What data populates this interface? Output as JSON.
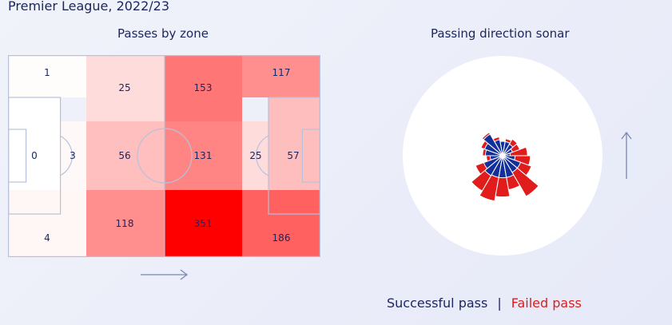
{
  "subtitle": "Premier League, 2022/23",
  "zones_title": "Passes by zone",
  "sonar_title": "Passing direction sonar",
  "legend": {
    "success": "Successful pass",
    "separator": "|",
    "failed": "Failed pass"
  },
  "colors": {
    "text": "#1c2760",
    "success": "#13309a",
    "failed": "#e01c1c",
    "heat_max": "#ff0000",
    "pitch_line": "#b8c1d8"
  },
  "chart_data": [
    {
      "type": "heatmap",
      "title": "Passes by zone",
      "attack_direction": "right",
      "max_value": 351,
      "zones": [
        {
          "zone": "defensive-left",
          "value": 1
        },
        {
          "zone": "defensive-box",
          "value": 0
        },
        {
          "zone": "defensive-box-edge",
          "value": 3
        },
        {
          "zone": "defensive-right",
          "value": 4
        },
        {
          "zone": "own-half-left",
          "value": 25
        },
        {
          "zone": "own-half-centre",
          "value": 56
        },
        {
          "zone": "own-half-right",
          "value": 118
        },
        {
          "zone": "opp-half-left",
          "value": 153
        },
        {
          "zone": "opp-half-centre",
          "value": 131
        },
        {
          "zone": "opp-half-right",
          "value": 351
        },
        {
          "zone": "final-third-left",
          "value": 117
        },
        {
          "zone": "final-third-box-edge",
          "value": 25
        },
        {
          "zone": "final-third-box",
          "value": 57
        },
        {
          "zone": "final-third-right",
          "value": 186
        }
      ]
    },
    {
      "type": "polar-bar",
      "title": "Passing direction sonar",
      "direction_arrow": "up",
      "angles_deg": [
        10,
        30,
        50,
        70,
        90,
        110,
        130,
        150,
        170,
        190,
        210,
        230,
        250,
        270,
        290,
        310,
        330,
        350
      ],
      "success_lengths": [
        0.16,
        0.22,
        0.28,
        0.3,
        0.3,
        0.34,
        0.52,
        0.4,
        0.36,
        0.26,
        0.42,
        0.48,
        0.46,
        0.46,
        0.46,
        0.4,
        0.4,
        0.26
      ],
      "total_lengths": [
        0.52,
        0.38,
        0.4,
        0.36,
        0.3,
        0.4,
        0.56,
        0.48,
        0.42,
        0.34,
        0.6,
        0.85,
        0.96,
        0.86,
        0.72,
        0.98,
        0.64,
        0.58
      ]
    }
  ]
}
